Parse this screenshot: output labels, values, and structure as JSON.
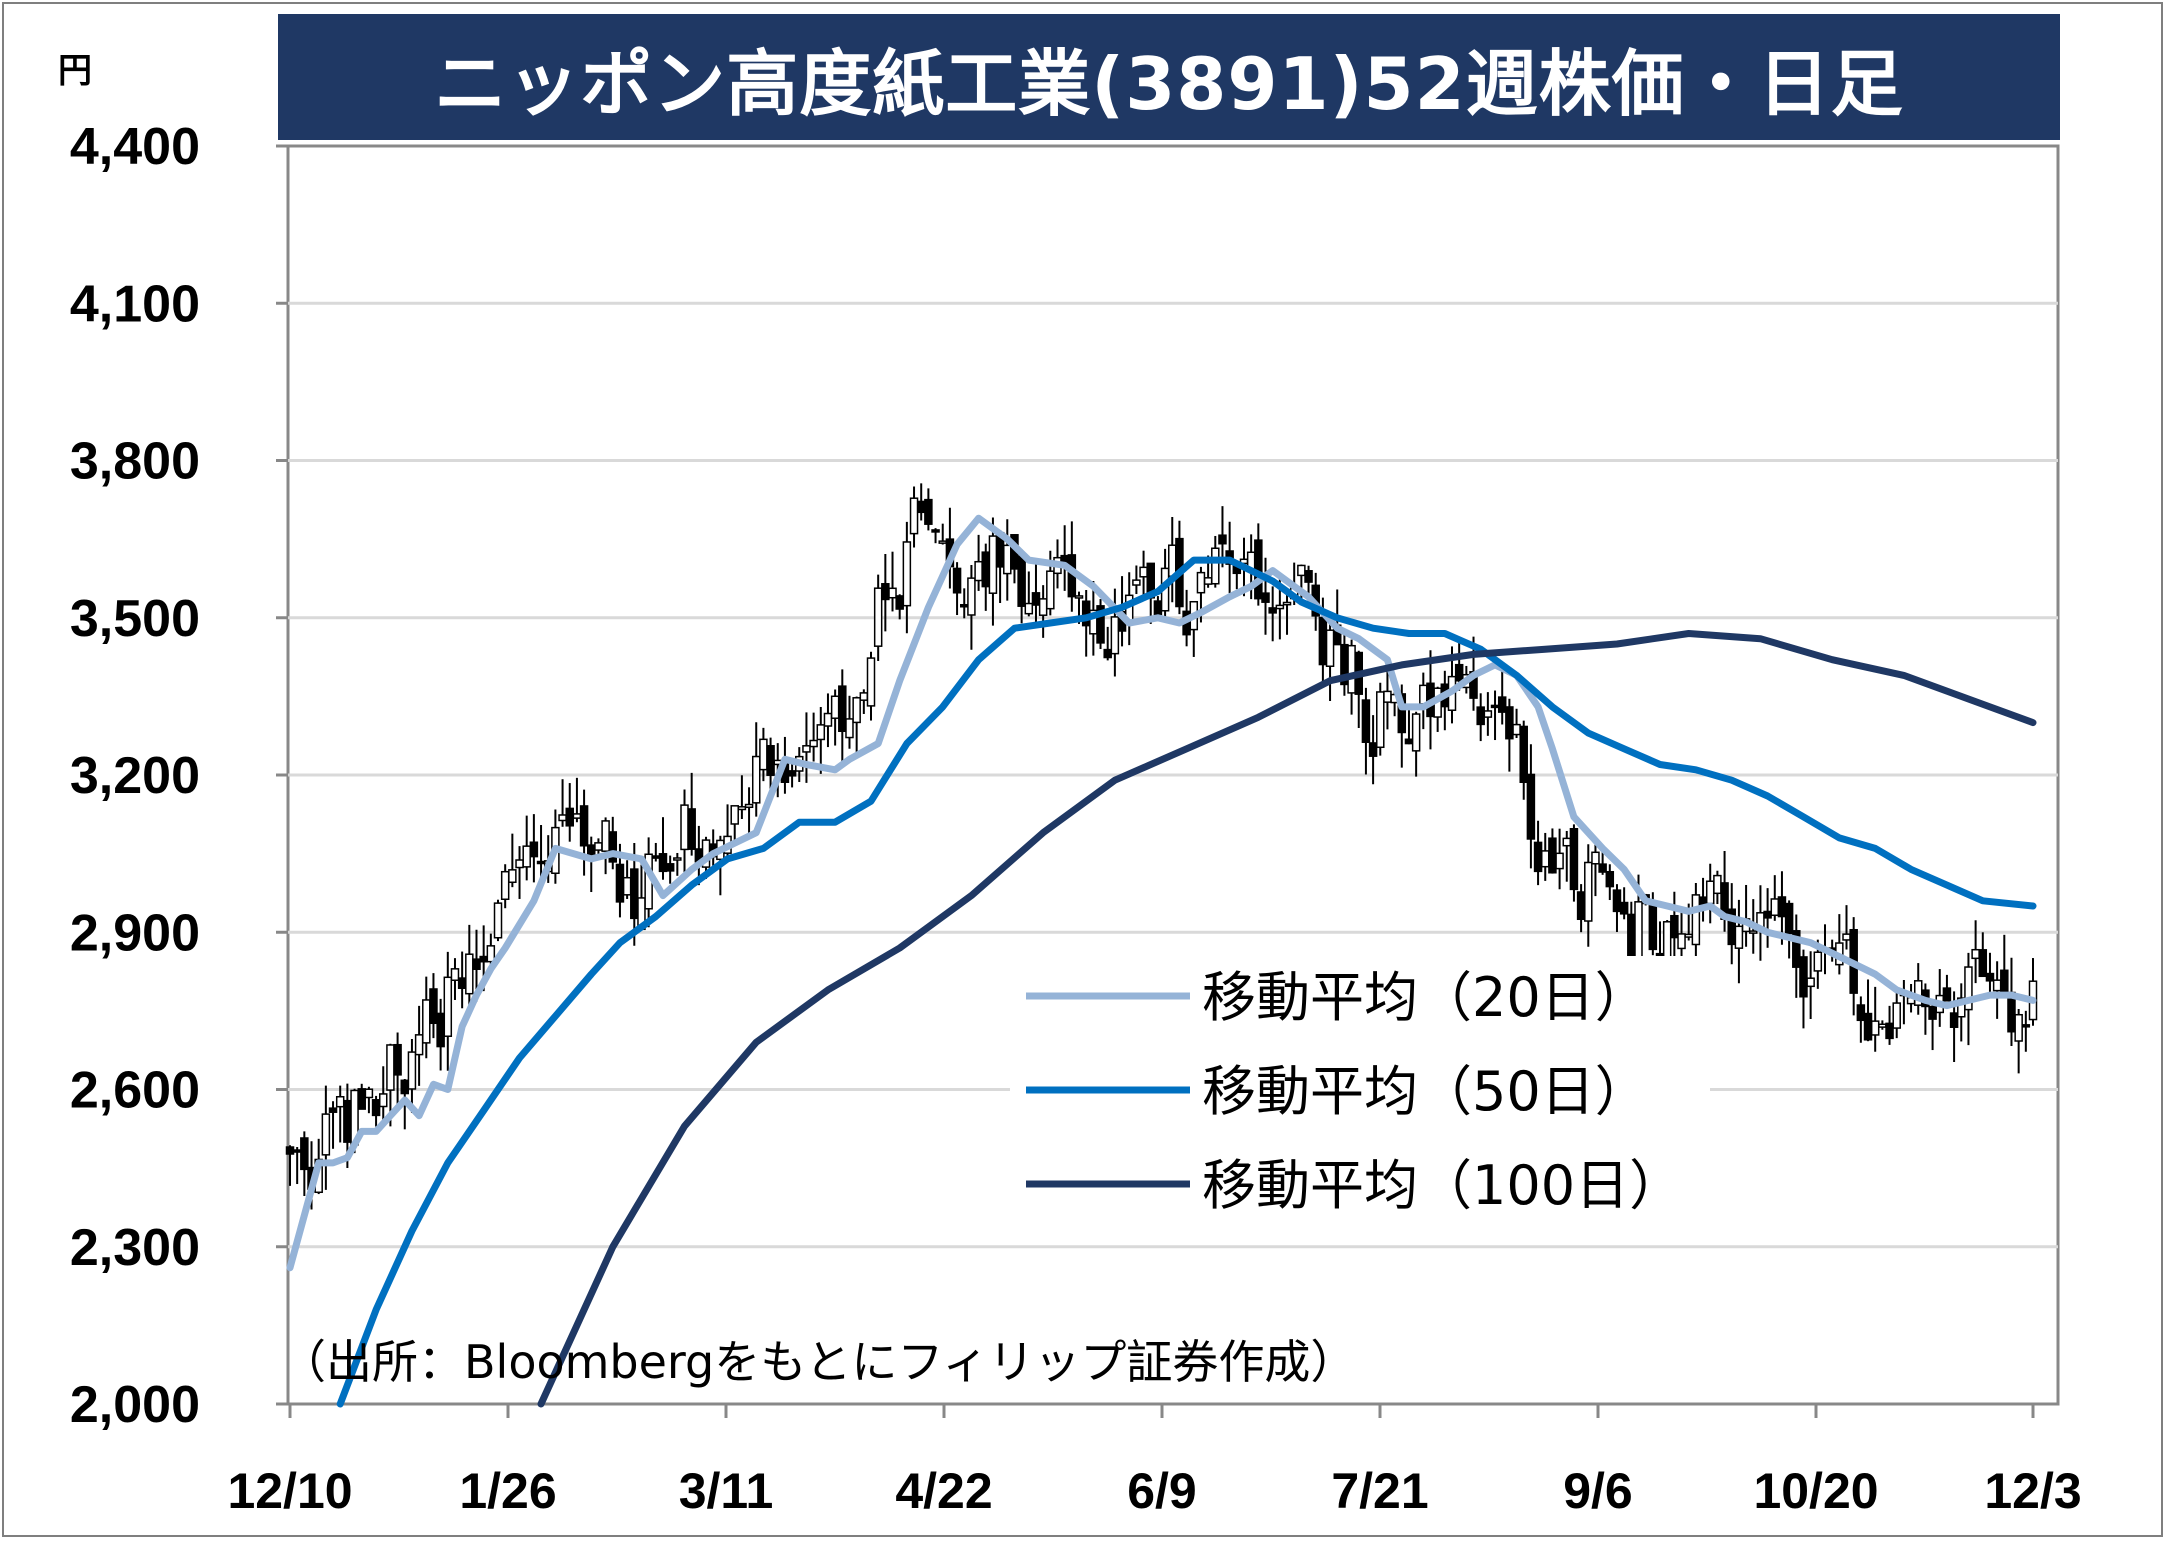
{
  "chart_data": {
    "type": "line",
    "subtype": "candlestick-with-moving-averages",
    "title": "ニッポン高度紙工業(3891)52週株価・日足",
    "y_unit": "円",
    "ylim": [
      2000,
      4400
    ],
    "y_ticks": [
      "2,000",
      "2,300",
      "2,600",
      "2,900",
      "3,200",
      "3,500",
      "3,800",
      "4,100",
      "4,400"
    ],
    "x_ticks": [
      "12/10",
      "1/26",
      "3/11",
      "4/22",
      "6/9",
      "7/21",
      "9/6",
      "10/20",
      "12/3"
    ],
    "grid": true,
    "legend_position": "lower-right",
    "source": "（出所：Bloombergをもとにフィリップ証券作成）",
    "colors": {
      "ma20": "#95b3d7",
      "ma50": "#0070c0",
      "ma100": "#1f3864",
      "candle": "#000000",
      "title_bg": "#1f3864"
    },
    "series": [
      {
        "name": "移動平均（20日）",
        "color": "#95b3d7",
        "x": [
          0,
          4,
          6,
          8,
          10,
          12,
          14,
          16,
          18,
          20,
          22,
          24,
          26,
          28,
          30,
          34,
          37,
          42,
          45,
          49,
          52,
          56,
          59,
          62,
          65,
          69,
          72,
          76,
          78,
          82,
          85,
          89,
          93,
          96,
          100,
          103,
          108,
          112,
          117,
          121,
          124,
          127,
          131,
          134,
          137,
          139,
          142,
          146,
          149,
          153,
          155,
          158,
          162,
          165,
          168,
          171,
          174,
          176,
          179,
          183,
          186,
          189,
          192,
          195,
          198,
          200,
          203,
          206,
          209,
          212,
          215,
          218,
          221,
          224,
          228,
          231,
          234,
          237,
          240,
          243
        ],
        "y": [
          2260,
          2460,
          2460,
          2470,
          2520,
          2520,
          2550,
          2580,
          2550,
          2610,
          2600,
          2720,
          2780,
          2830,
          2870,
          2960,
          3060,
          3040,
          3050,
          3040,
          2970,
          3020,
          3050,
          3070,
          3090,
          3230,
          3220,
          3210,
          3230,
          3260,
          3380,
          3520,
          3640,
          3690,
          3650,
          3610,
          3600,
          3560,
          3490,
          3500,
          3490,
          3510,
          3540,
          3560,
          3590,
          3570,
          3540,
          3480,
          3460,
          3420,
          3330,
          3330,
          3360,
          3390,
          3410,
          3390,
          3330,
          3250,
          3120,
          3060,
          3020,
          2960,
          2950,
          2940,
          2950,
          2930,
          2920,
          2900,
          2890,
          2880,
          2860,
          2840,
          2820,
          2790,
          2770,
          2760,
          2770,
          2780,
          2780,
          2770
        ]
      },
      {
        "name": "移動平均（50日）",
        "color": "#0070c0",
        "x": [
          7,
          12,
          17,
          22,
          27,
          32,
          37,
          42,
          46,
          51,
          56,
          61,
          66,
          71,
          76,
          81,
          86,
          91,
          96,
          101,
          106,
          111,
          116,
          121,
          126,
          131,
          134,
          137,
          141,
          146,
          151,
          156,
          161,
          166,
          171,
          176,
          181,
          186,
          191,
          196,
          201,
          206,
          211,
          216,
          221,
          226,
          231,
          236,
          243
        ],
        "y": [
          2000,
          2180,
          2330,
          2460,
          2560,
          2660,
          2740,
          2820,
          2880,
          2930,
          2990,
          3040,
          3060,
          3110,
          3110,
          3150,
          3260,
          3330,
          3420,
          3480,
          3490,
          3500,
          3520,
          3550,
          3610,
          3610,
          3590,
          3570,
          3530,
          3500,
          3480,
          3470,
          3470,
          3440,
          3390,
          3330,
          3280,
          3250,
          3220,
          3210,
          3190,
          3160,
          3120,
          3080,
          3060,
          3020,
          2990,
          2960,
          2950
        ]
      },
      {
        "name": "移動平均（100日）",
        "color": "#1f3864",
        "x": [
          35,
          45,
          55,
          65,
          75,
          85,
          95,
          105,
          115,
          125,
          135,
          145,
          155,
          165,
          175,
          185,
          195,
          205,
          215,
          225,
          235,
          243
        ],
        "y": [
          2000,
          2300,
          2530,
          2690,
          2790,
          2870,
          2970,
          3090,
          3190,
          3250,
          3310,
          3380,
          3410,
          3430,
          3440,
          3450,
          3470,
          3460,
          3420,
          3390,
          3340,
          3300
        ]
      }
    ]
  }
}
